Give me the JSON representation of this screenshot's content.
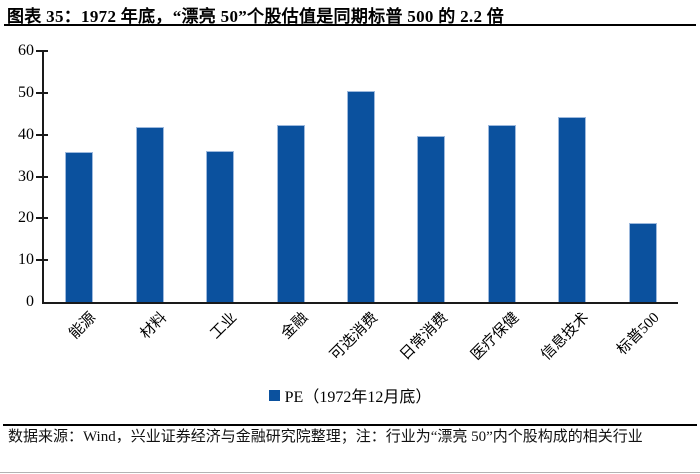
{
  "chart_data": {
    "type": "bar",
    "title": "图表 35：1972 年底，“漂亮 50”个股估值是同期标普 500 的 2.2 倍",
    "categories": [
      "能源",
      "材料",
      "工业",
      "金融",
      "可选消费",
      "日常消费",
      "医疗保健",
      "信息技术",
      "标普500"
    ],
    "values": [
      35.9,
      41.9,
      36.2,
      42.2,
      50.4,
      39.7,
      42.4,
      44.3,
      18.9
    ],
    "series_name": "PE（1972年12月底）",
    "xlabel": "",
    "ylabel": "",
    "ylim": [
      0,
      60
    ],
    "yticks": [
      0,
      10,
      20,
      30,
      40,
      50,
      60
    ],
    "grid": false,
    "legend_position": "bottom"
  },
  "colors": {
    "bar": "#0B519E",
    "axis": "#1a1a1a"
  },
  "footer": {
    "source_note": "数据来源：Wind，兴业证券经济与金融研究院整理；注：行业为“漂亮 50”内个股构成的相关行业"
  }
}
